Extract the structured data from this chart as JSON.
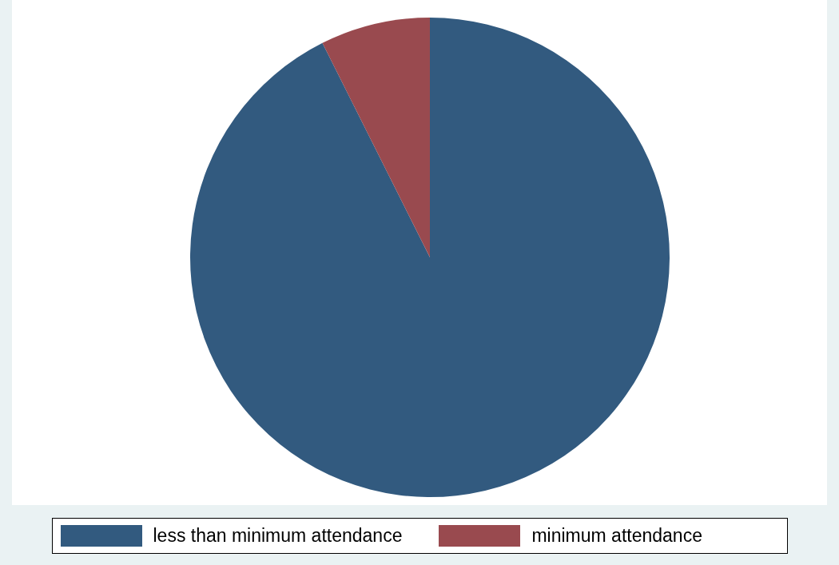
{
  "chart_data": {
    "type": "pie",
    "categories": [
      "less than minimum attendance",
      "minimum attendance"
    ],
    "values": [
      92.6,
      7.4
    ],
    "colors": [
      "#325a7f",
      "#994a4f"
    ],
    "legend": "bottom"
  }
}
